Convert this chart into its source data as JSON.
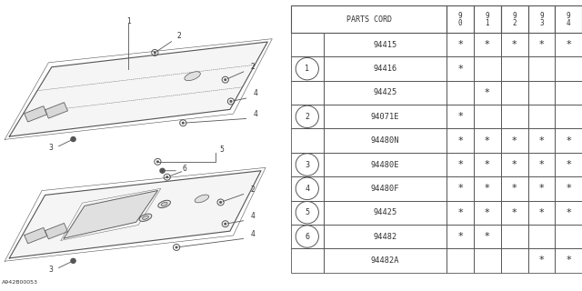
{
  "bg_color": "#ffffff",
  "line_color": "#555555",
  "text_color": "#333333",
  "diagram_label": "A942B00053",
  "table": {
    "rows": [
      {
        "num": "",
        "circle": false,
        "part": "94415",
        "marks": [
          true,
          true,
          true,
          true,
          true
        ]
      },
      {
        "num": "1",
        "circle": true,
        "part": "94416",
        "marks": [
          true,
          false,
          false,
          false,
          false
        ]
      },
      {
        "num": "",
        "circle": false,
        "part": "94425",
        "marks": [
          false,
          true,
          false,
          false,
          false
        ]
      },
      {
        "num": "2",
        "circle": true,
        "part": "94071E",
        "marks": [
          true,
          false,
          false,
          false,
          false
        ]
      },
      {
        "num": "",
        "circle": false,
        "part": "94480N",
        "marks": [
          true,
          true,
          true,
          true,
          true
        ]
      },
      {
        "num": "3",
        "circle": true,
        "part": "94480E",
        "marks": [
          true,
          true,
          true,
          true,
          true
        ]
      },
      {
        "num": "4",
        "circle": true,
        "part": "94480F",
        "marks": [
          true,
          true,
          true,
          true,
          true
        ]
      },
      {
        "num": "5",
        "circle": true,
        "part": "94425",
        "marks": [
          true,
          true,
          true,
          true,
          true
        ]
      },
      {
        "num": "6",
        "circle": true,
        "part": "94482",
        "marks": [
          true,
          true,
          false,
          false,
          false
        ]
      },
      {
        "num": "",
        "circle": false,
        "part": "94482A",
        "marks": [
          false,
          false,
          false,
          true,
          true
        ]
      }
    ]
  }
}
